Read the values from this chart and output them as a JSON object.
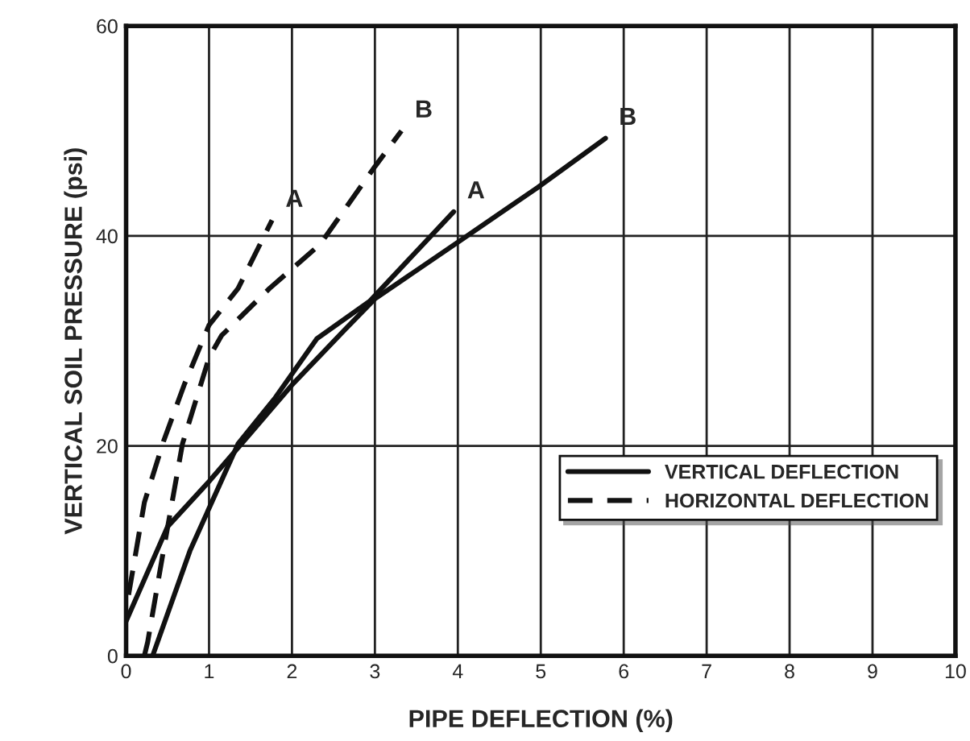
{
  "chart_data": {
    "type": "line",
    "xlabel": "PIPE DEFLECTION (%)",
    "ylabel": "VERTICAL SOIL PRESSURE (psi)",
    "xlim": [
      0,
      10
    ],
    "ylim": [
      0,
      60
    ],
    "xticks": [
      0,
      1,
      2,
      3,
      4,
      5,
      6,
      7,
      8,
      9,
      10
    ],
    "yticks": [
      0,
      20,
      40,
      60
    ],
    "grid": true,
    "legend": "bottom right",
    "marker": "none",
    "series": [
      {
        "name": "VERTICAL DEFLECTION",
        "color": "#111111",
        "line_style": "solid",
        "x": [
          0.32,
          0.77,
          1.35,
          1.8,
          2.3,
          2.94,
          3.95
        ],
        "values": [
          0,
          10,
          20.2,
          24.6,
          30.2,
          33.8,
          42.3
        ]
      },
      {
        "color": "#111111",
        "line_style": "solid",
        "x": [
          0,
          0.5,
          1,
          1.5,
          2,
          2.63,
          3,
          4,
          4.96,
          5.78
        ],
        "values": [
          3.3,
          12.3,
          16.6,
          21.2,
          25.8,
          31,
          34,
          39.4,
          44.6,
          49.3
        ]
      },
      {
        "name": "HORIZONTAL DEFLECTION",
        "color": "#111111",
        "line_style": "dashed",
        "x": [
          0.03,
          0.22,
          0.45,
          0.7,
          1,
          1.35,
          1.76
        ],
        "values": [
          5.8,
          14.6,
          20.4,
          25.8,
          31.5,
          35,
          41.5
        ]
      },
      {
        "color": "#111111",
        "line_style": "dashed",
        "x": [
          0.22,
          0.26,
          0.45,
          0.68,
          1,
          1.15,
          1.73,
          2.34,
          3,
          3.32
        ],
        "values": [
          0,
          1.3,
          10,
          20.2,
          28.4,
          30.5,
          35,
          39.2,
          46.6,
          50
        ]
      }
    ],
    "annotations": [
      {
        "text": "A",
        "x": 3.95,
        "y": 42.3
      },
      {
        "text": "B",
        "x": 5.78,
        "y": 49.3
      },
      {
        "text": "A",
        "x": 1.76,
        "y": 41.5
      },
      {
        "text": "B",
        "x": 3.32,
        "y": 50
      }
    ]
  }
}
